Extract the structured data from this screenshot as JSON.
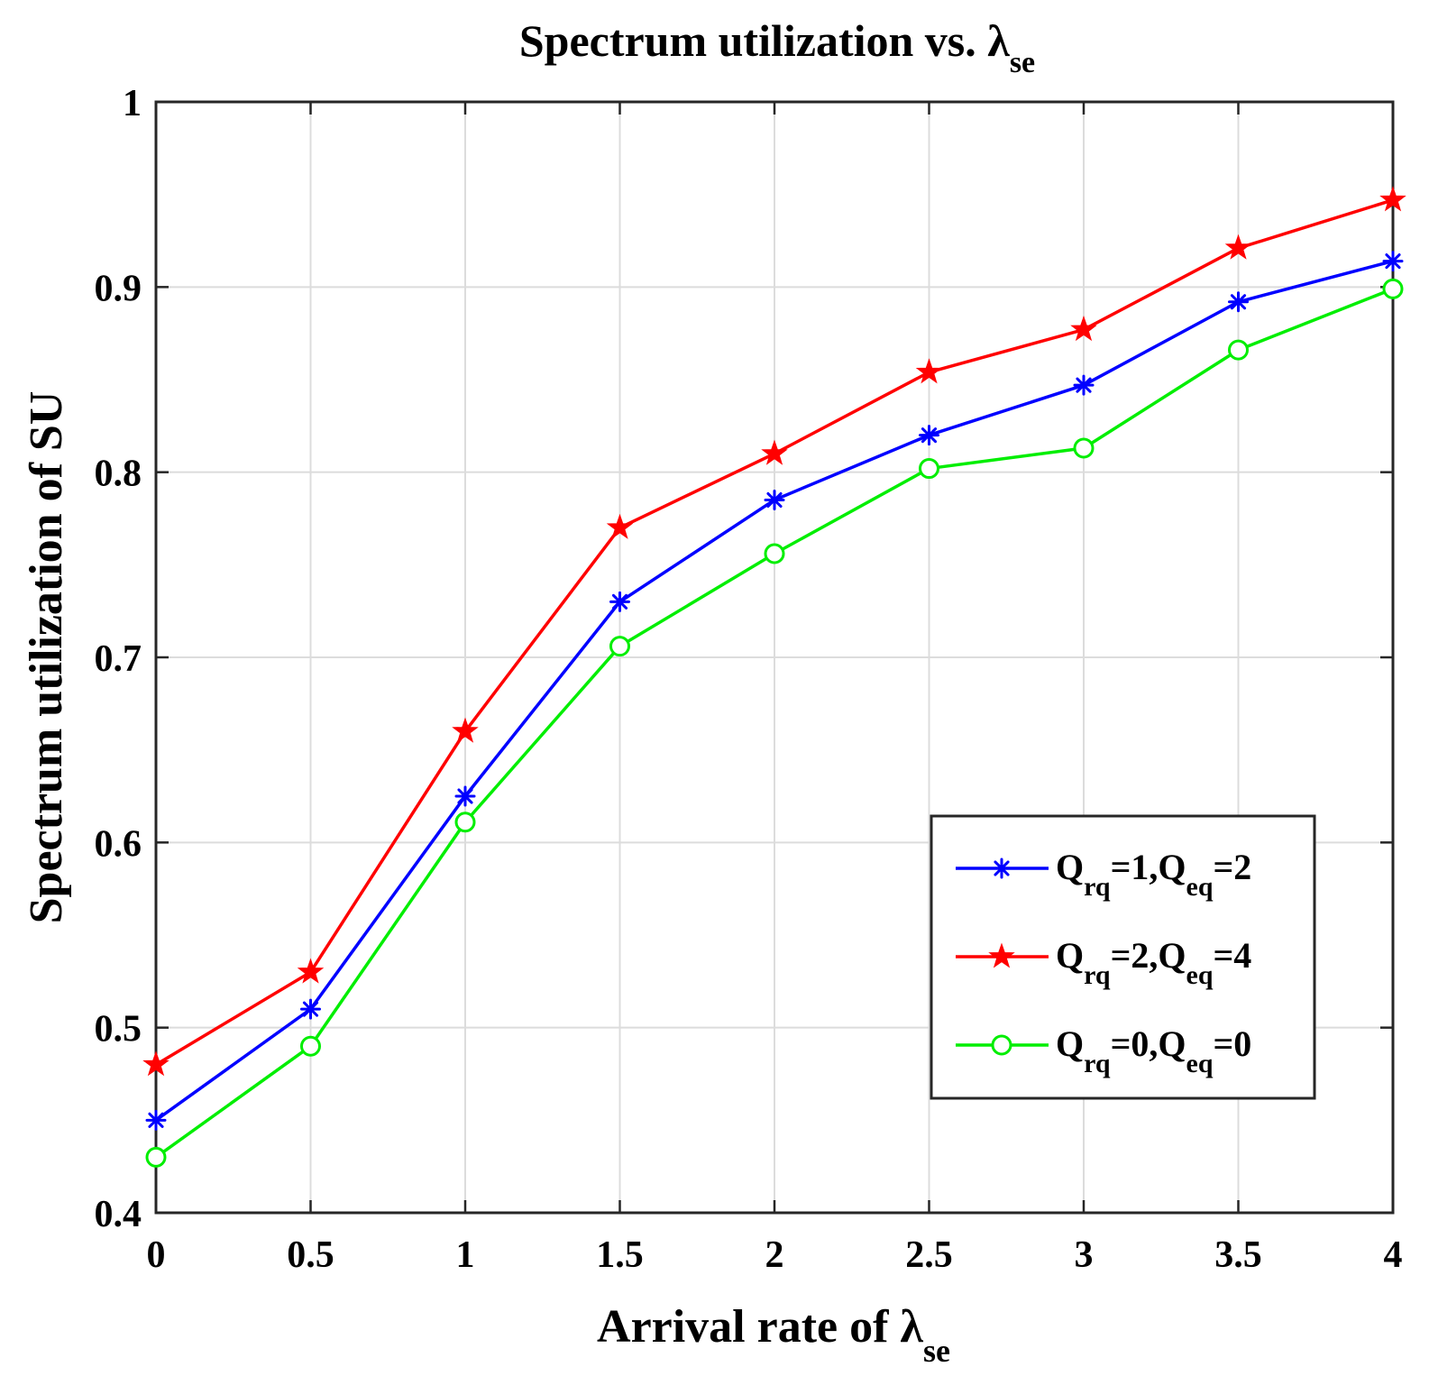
{
  "chart_data": {
    "type": "line",
    "title": "Spectrum utilization vs. λ",
    "title_sub": "se",
    "xlabel": "Arrival rate of λ",
    "xlabel_sub": "se",
    "ylabel": "Spectrum utilization of SU",
    "x": [
      0,
      0.5,
      1,
      1.5,
      2,
      2.5,
      3,
      3.5,
      4
    ],
    "xlim": [
      0,
      4
    ],
    "ylim": [
      0.4,
      1
    ],
    "xticks": [
      "0",
      "0.5",
      "1",
      "1.5",
      "2",
      "2.5",
      "3",
      "3.5",
      "4"
    ],
    "yticks": [
      "0.4",
      "0.5",
      "0.6",
      "0.7",
      "0.8",
      "0.9",
      "1"
    ],
    "grid": true,
    "legend_position": "lower-right",
    "series": [
      {
        "name": "Q_rq=1,Q_eq=2",
        "legend": [
          "Q",
          "rq",
          "=1,Q",
          "eq",
          "=2"
        ],
        "color": "#0000ff",
        "marker": "asterisk",
        "values": [
          0.45,
          0.51,
          0.625,
          0.73,
          0.785,
          0.82,
          0.847,
          0.892,
          0.914
        ]
      },
      {
        "name": "Q_rq=2,Q_eq=4",
        "legend": [
          "Q",
          "rq",
          "=2,Q",
          "eq",
          "=4"
        ],
        "color": "#ff0000",
        "marker": "pentagram",
        "values": [
          0.48,
          0.53,
          0.66,
          0.77,
          0.81,
          0.854,
          0.877,
          0.921,
          0.947
        ]
      },
      {
        "name": "Q_rq=0,Q_eq=0",
        "legend": [
          "Q",
          "rq",
          "=0,Q",
          "eq",
          "=0"
        ],
        "color": "#00ee00",
        "marker": "circle",
        "values": [
          0.43,
          0.49,
          0.611,
          0.706,
          0.756,
          0.802,
          0.813,
          0.866,
          0.899
        ]
      }
    ]
  }
}
